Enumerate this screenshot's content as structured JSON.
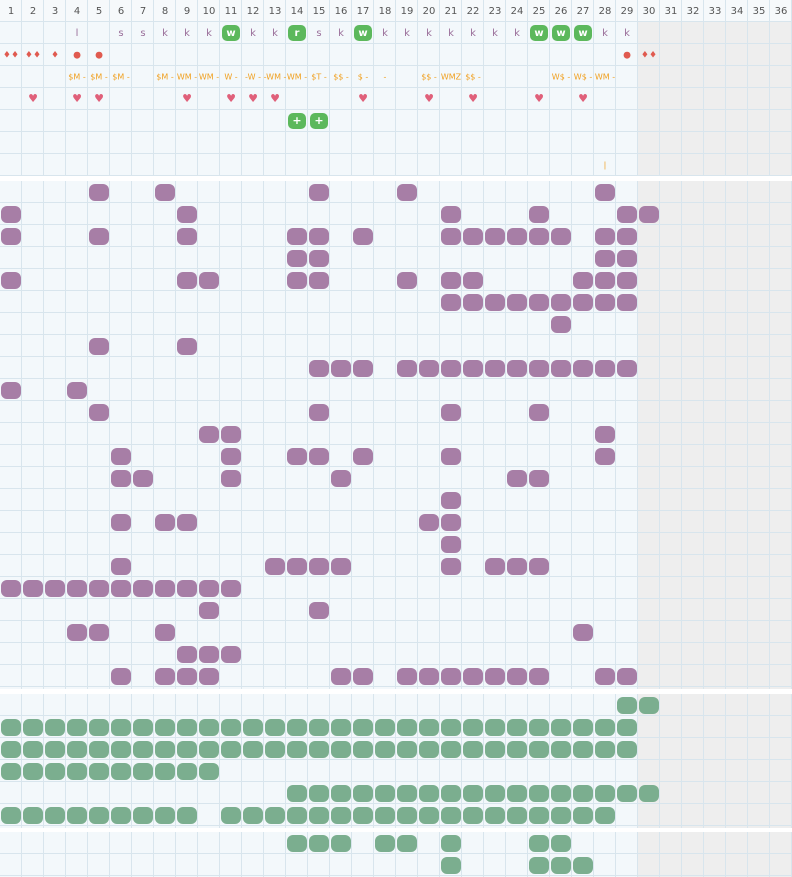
{
  "header": {
    "columns": [
      1,
      2,
      3,
      4,
      5,
      6,
      7,
      8,
      9,
      10,
      11,
      12,
      13,
      14,
      15,
      16,
      17,
      18,
      19,
      20,
      21,
      22,
      23,
      24,
      25,
      26,
      27,
      28,
      29,
      30,
      31,
      32,
      33,
      34,
      35,
      36
    ]
  },
  "top_rows": {
    "letters": [
      null,
      null,
      null,
      "l",
      null,
      "s",
      "s",
      "k",
      "k",
      "k",
      null,
      "k",
      "k",
      null,
      "s",
      "k",
      null,
      "k",
      "k",
      "k",
      "k",
      "k",
      "k",
      "k",
      null,
      null,
      null,
      "k",
      "k"
    ],
    "badges": [
      null,
      null,
      null,
      null,
      null,
      null,
      null,
      null,
      null,
      null,
      "w",
      null,
      null,
      "r",
      null,
      null,
      "w",
      null,
      null,
      null,
      null,
      null,
      null,
      null,
      "w",
      "w",
      "w",
      null,
      null
    ],
    "markers": [
      "♦♦",
      "♦♦",
      "♦",
      "●",
      "●",
      null,
      null,
      null,
      null,
      null,
      null,
      null,
      null,
      null,
      null,
      null,
      null,
      null,
      null,
      null,
      null,
      null,
      null,
      null,
      null,
      null,
      null,
      null,
      "●",
      "♦♦"
    ],
    "tags": [
      null,
      null,
      null,
      "$M -",
      "$M -",
      "$M -",
      null,
      "$M -",
      "WM -",
      "WM -",
      "W -",
      "-W -",
      "-WM -",
      "WM -",
      "$T -",
      "$$ -",
      "$ -",
      "-",
      null,
      "$$ -",
      "WMZ",
      "$$ -",
      null,
      null,
      null,
      "W$ -",
      "W$ -",
      "WM -"
    ],
    "hearts": [
      null,
      "♥",
      null,
      "♥",
      "♥",
      null,
      null,
      null,
      "♥",
      null,
      "♥",
      "♥",
      "♥",
      null,
      null,
      null,
      "♥",
      null,
      null,
      "♥",
      null,
      "♥",
      null,
      null,
      "♥",
      null,
      "♥"
    ],
    "plus_badges": [
      null,
      null,
      null,
      null,
      null,
      null,
      null,
      null,
      null,
      null,
      null,
      null,
      null,
      "+",
      "+"
    ],
    "ticks": [
      null,
      null,
      null,
      null,
      null,
      null,
      null,
      null,
      null,
      null,
      null,
      null,
      null,
      null,
      null,
      null,
      null,
      null,
      null,
      null,
      null,
      null,
      null,
      null,
      null,
      null,
      null,
      "|"
    ]
  }
}
